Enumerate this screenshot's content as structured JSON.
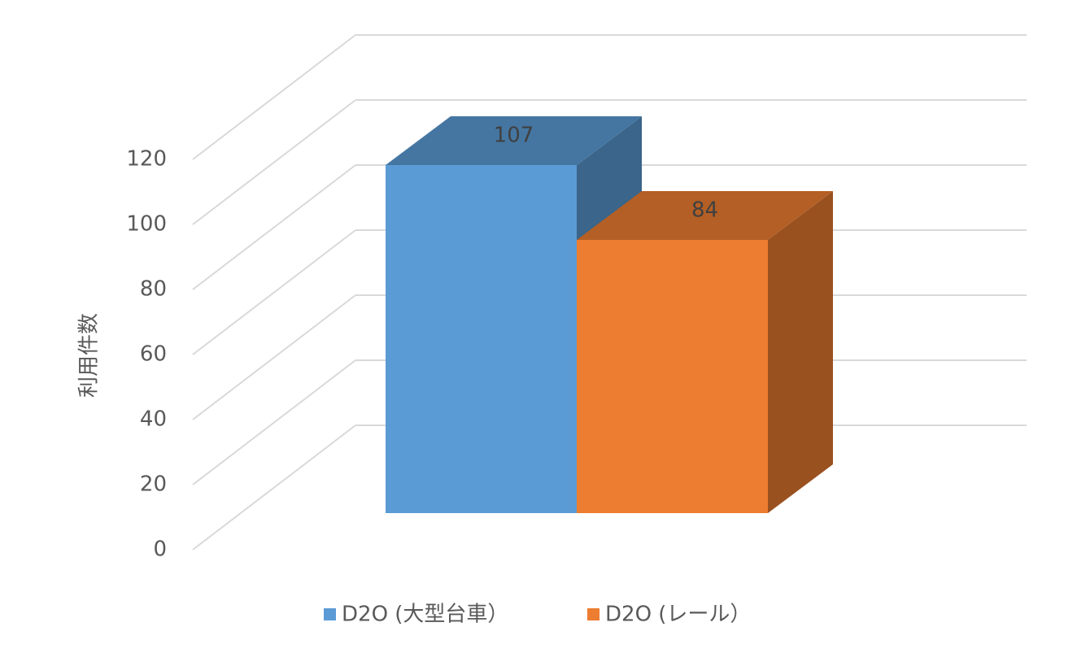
{
  "chart_data": {
    "type": "bar3d",
    "y_label": "利用件数",
    "categories": [
      null
    ],
    "series": [
      {
        "name": "D2O (大型台車）",
        "color": "#5b9bd5",
        "values": [
          107
        ]
      },
      {
        "name": "D2O (レール）",
        "color": "#ed7d31",
        "values": [
          84
        ]
      }
    ],
    "ylim": [
      0,
      120
    ],
    "yticks": [
      0,
      20,
      40,
      60,
      80,
      100,
      120
    ],
    "grid": true,
    "legend": "bottom"
  }
}
